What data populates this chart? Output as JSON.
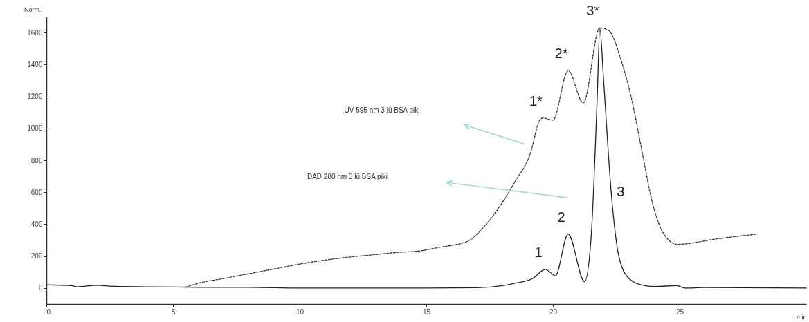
{
  "chart_data": {
    "type": "line",
    "xlabel": "min",
    "ylabel": "Norm.",
    "xlim": [
      0,
      30
    ],
    "ylim": [
      -100,
      1700
    ],
    "xticks": [
      0,
      5,
      10,
      15,
      20,
      25
    ],
    "yticks": [
      0,
      200,
      400,
      600,
      800,
      1000,
      1200,
      1400,
      1600
    ],
    "grid": false,
    "marker": "none",
    "series": [
      {
        "color": "#333333",
        "line_style": "dashed",
        "x": [
          5.5,
          6,
          7,
          8,
          9,
          10,
          11,
          12,
          13,
          14,
          14.6,
          15.5,
          16.6,
          17.5,
          18.5,
          19.1,
          19.5,
          19.6,
          20.0,
          20.6,
          21.2,
          21.85,
          22.2,
          22.7,
          23.1,
          23.5,
          23.9,
          24.3,
          24.9,
          26.5,
          28.1
        ],
        "values": [
          5,
          30,
          60,
          90,
          120,
          150,
          175,
          195,
          210,
          225,
          230,
          255,
          291,
          426,
          665,
          839,
          1057,
          1065,
          1052,
          1361,
          1160,
          1630,
          1613,
          1422,
          1187,
          870,
          552,
          361,
          274,
          309,
          339
        ]
      },
      {
        "color": "#222222",
        "line_style": "solid",
        "x": [
          0,
          1,
          1.2,
          2,
          2.5,
          4,
          6,
          8,
          10,
          15,
          17,
          18,
          18.5,
          19.2,
          19.7,
          20.1,
          20.6,
          21.25,
          21.5,
          21.75,
          21.85,
          22.0,
          22.3,
          22.6,
          23,
          23.5,
          24,
          24.9,
          25.2,
          26,
          30
        ],
        "values": [
          20,
          15,
          8,
          18,
          12,
          8,
          5,
          5,
          0,
          0,
          2,
          15,
          30,
          60,
          117,
          78,
          339,
          39,
          300,
          1200,
          1630,
          1300,
          600,
          200,
          60,
          20,
          10,
          15,
          0,
          3,
          0
        ]
      }
    ],
    "annotations": [
      "UV 595 nm 3 lü BSA piki",
      "DAD 280 nm 3 lü BSA piki",
      {
        "text": "1*",
        "x": 19.6,
        "y": 1065
      },
      {
        "text": "2*",
        "x": 20.6,
        "y": 1361
      },
      {
        "text": "3*",
        "x": 21.85,
        "y": 1630
      },
      {
        "text": "1",
        "x": 19.7,
        "y": 117
      },
      {
        "text": "2",
        "x": 20.6,
        "y": 339
      },
      {
        "text": "3",
        "x": 22.3,
        "y": 600
      }
    ]
  }
}
